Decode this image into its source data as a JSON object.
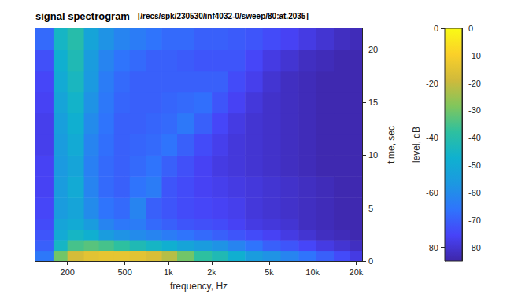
{
  "chart_data": {
    "type": "spectrogram",
    "title": "signal spectrogram",
    "subtitle": "[/recs/spk/230530/inf4032-0/sweep/80:at.2035]",
    "xlabel": "frequency, Hz",
    "ylabel": "time, sec",
    "zlabel": "level, dB",
    "log": "x",
    "grid": true,
    "xlim": [
      120,
      22000
    ],
    "xticks": [
      200,
      500,
      {
        "value": 1000,
        "label": "1k"
      },
      {
        "value": 2000,
        "label": "2k"
      },
      {
        "value": 5000,
        "label": "5k"
      },
      {
        "value": 10000,
        "label": "10k"
      },
      {
        "value": 20000,
        "label": "20k"
      }
    ],
    "ylim": [
      0,
      22
    ],
    "yticks": [
      0,
      5,
      10,
      15,
      20
    ],
    "zticks": [
      0,
      -20,
      -40,
      -60,
      -80
    ],
    "frequency_bins": [
      120,
      160,
      200,
      260,
      330,
      420,
      540,
      700,
      900,
      1150,
      1500,
      2000,
      2600,
      3400,
      4500,
      6000,
      8000,
      10500,
      14000,
      18000,
      22000
    ],
    "time_bins": [
      0,
      1,
      2,
      3,
      4,
      6,
      8,
      10,
      12,
      14,
      16,
      18,
      20,
      22
    ],
    "level": [
      [
        -65,
        -30,
        -18,
        -15,
        -14,
        -14,
        -15,
        -17,
        -22,
        -30,
        -38,
        -42,
        -48,
        -55,
        -58,
        -62,
        -66,
        -70,
        -74,
        -78
      ],
      [
        -70,
        -45,
        -35,
        -33,
        -35,
        -38,
        -42,
        -45,
        -48,
        -52,
        -55,
        -58,
        -62,
        -66,
        -70,
        -72,
        -75,
        -78,
        -80,
        -82
      ],
      [
        -72,
        -50,
        -45,
        -48,
        -55,
        -58,
        -60,
        -62,
        -64,
        -66,
        -68,
        -70,
        -72,
        -74,
        -76,
        -78,
        -80,
        -82,
        -83,
        -84
      ],
      [
        -74,
        -52,
        -50,
        -55,
        -62,
        -65,
        -64,
        -68,
        -70,
        -72,
        -73,
        -74,
        -76,
        -78,
        -79,
        -80,
        -82,
        -83,
        -84,
        -84
      ],
      [
        -75,
        -55,
        -52,
        -60,
        -66,
        -68,
        -62,
        -70,
        -72,
        -74,
        -75,
        -76,
        -77,
        -79,
        -80,
        -81,
        -82,
        -83,
        -84,
        -84
      ],
      [
        -76,
        -55,
        -50,
        -62,
        -68,
        -70,
        -66,
        -64,
        -72,
        -74,
        -76,
        -77,
        -78,
        -79,
        -80,
        -81,
        -82,
        -83,
        -84,
        -84
      ],
      [
        -76,
        -56,
        -52,
        -63,
        -68,
        -70,
        -68,
        -66,
        -70,
        -73,
        -76,
        -78,
        -79,
        -80,
        -81,
        -82,
        -83,
        -84,
        -84,
        -84
      ],
      [
        -77,
        -55,
        -50,
        -62,
        -67,
        -70,
        -69,
        -68,
        -66,
        -70,
        -74,
        -77,
        -79,
        -80,
        -81,
        -82,
        -83,
        -84,
        -84,
        -84
      ],
      [
        -77,
        -54,
        -48,
        -60,
        -66,
        -70,
        -70,
        -69,
        -68,
        -65,
        -70,
        -75,
        -78,
        -80,
        -81,
        -82,
        -83,
        -84,
        -84,
        -84
      ],
      [
        -76,
        -52,
        -46,
        -58,
        -65,
        -69,
        -70,
        -70,
        -69,
        -68,
        -67,
        -72,
        -76,
        -79,
        -81,
        -82,
        -83,
        -84,
        -84,
        -84
      ],
      [
        -75,
        -50,
        -44,
        -56,
        -64,
        -68,
        -70,
        -70,
        -70,
        -70,
        -70,
        -70,
        -74,
        -77,
        -80,
        -82,
        -83,
        -84,
        -84,
        -84
      ],
      [
        -73,
        -48,
        -42,
        -55,
        -62,
        -66,
        -68,
        -70,
        -70,
        -71,
        -72,
        -72,
        -72,
        -75,
        -78,
        -80,
        -82,
        -83,
        -84,
        -84
      ],
      [
        -68,
        -45,
        -40,
        -52,
        -58,
        -62,
        -64,
        -66,
        -68,
        -68,
        -70,
        -70,
        -71,
        -72,
        -74,
        -76,
        -78,
        -80,
        -82,
        -83
      ]
    ],
    "colorbar": {
      "range": [
        -85,
        0
      ],
      "ticks": [
        0,
        -10,
        -20,
        -30,
        -40,
        -50,
        -60,
        -70,
        -80
      ]
    }
  }
}
